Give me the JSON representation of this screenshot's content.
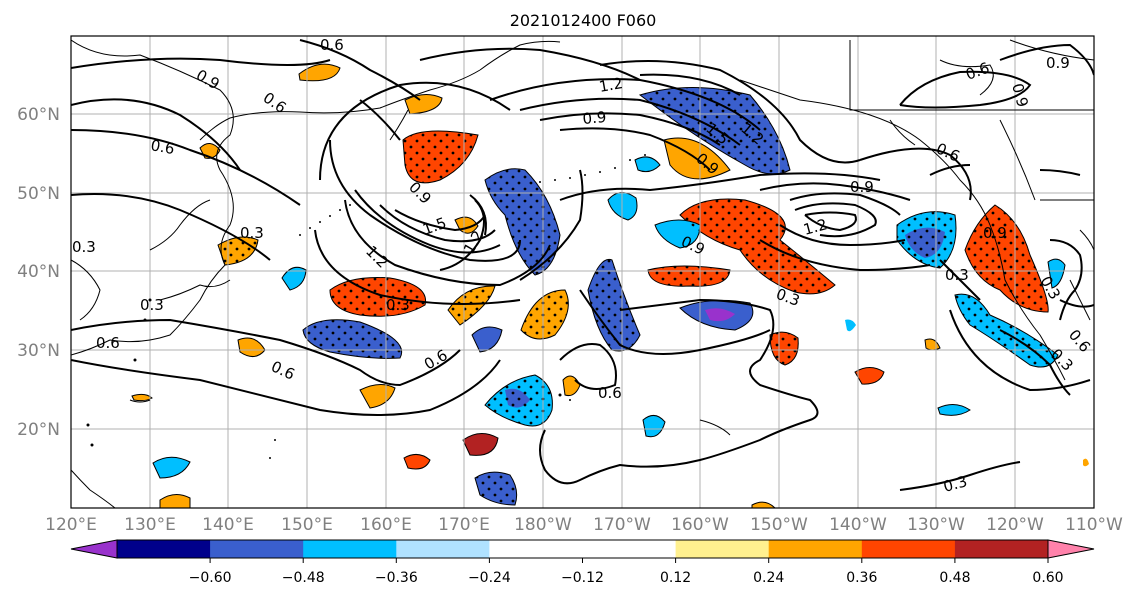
{
  "title": "2021012400 F060",
  "latitude_labels": [
    "60°N",
    "50°N",
    "40°N",
    "30°N",
    "20°N"
  ],
  "longitude_labels": [
    "120°E",
    "130°E",
    "140°E",
    "150°E",
    "160°E",
    "170°E",
    "180°W",
    "170°W",
    "160°W",
    "150°W",
    "140°W",
    "130°W",
    "120°W",
    "110°W"
  ],
  "colorbar": {
    "colors": [
      "#9932cc",
      "#00008b",
      "#3a5fcd",
      "#00bfff",
      "#b0e2ff",
      "#ffffff",
      "#ffffff",
      "#fff08f",
      "#ffa500",
      "#ff4500",
      "#b22222",
      "#ff82ab"
    ],
    "tick_labels": [
      "−0.60",
      "−0.48",
      "−0.36",
      "−0.24",
      "−0.12",
      "0.12",
      "0.24",
      "0.36",
      "0.48",
      "0.60"
    ]
  },
  "contour_labels": [
    "0.9",
    "0.6",
    "0.6",
    "0.6",
    "0.3",
    "0.3",
    "0.6",
    "0.6",
    "0.6",
    "1.5",
    "1.2",
    "0.9",
    "1.2",
    "0.3",
    "0.9",
    "1.2",
    "0.6",
    "0.9",
    "1.5",
    "1.2",
    "0.9",
    "0.6",
    "0.3",
    "0.9",
    "0.3",
    "0.3",
    "1.2",
    "0.9",
    "0.9",
    "0.6",
    "0.3",
    "0.9",
    "0.6",
    "0.3",
    "0.3"
  ]
}
